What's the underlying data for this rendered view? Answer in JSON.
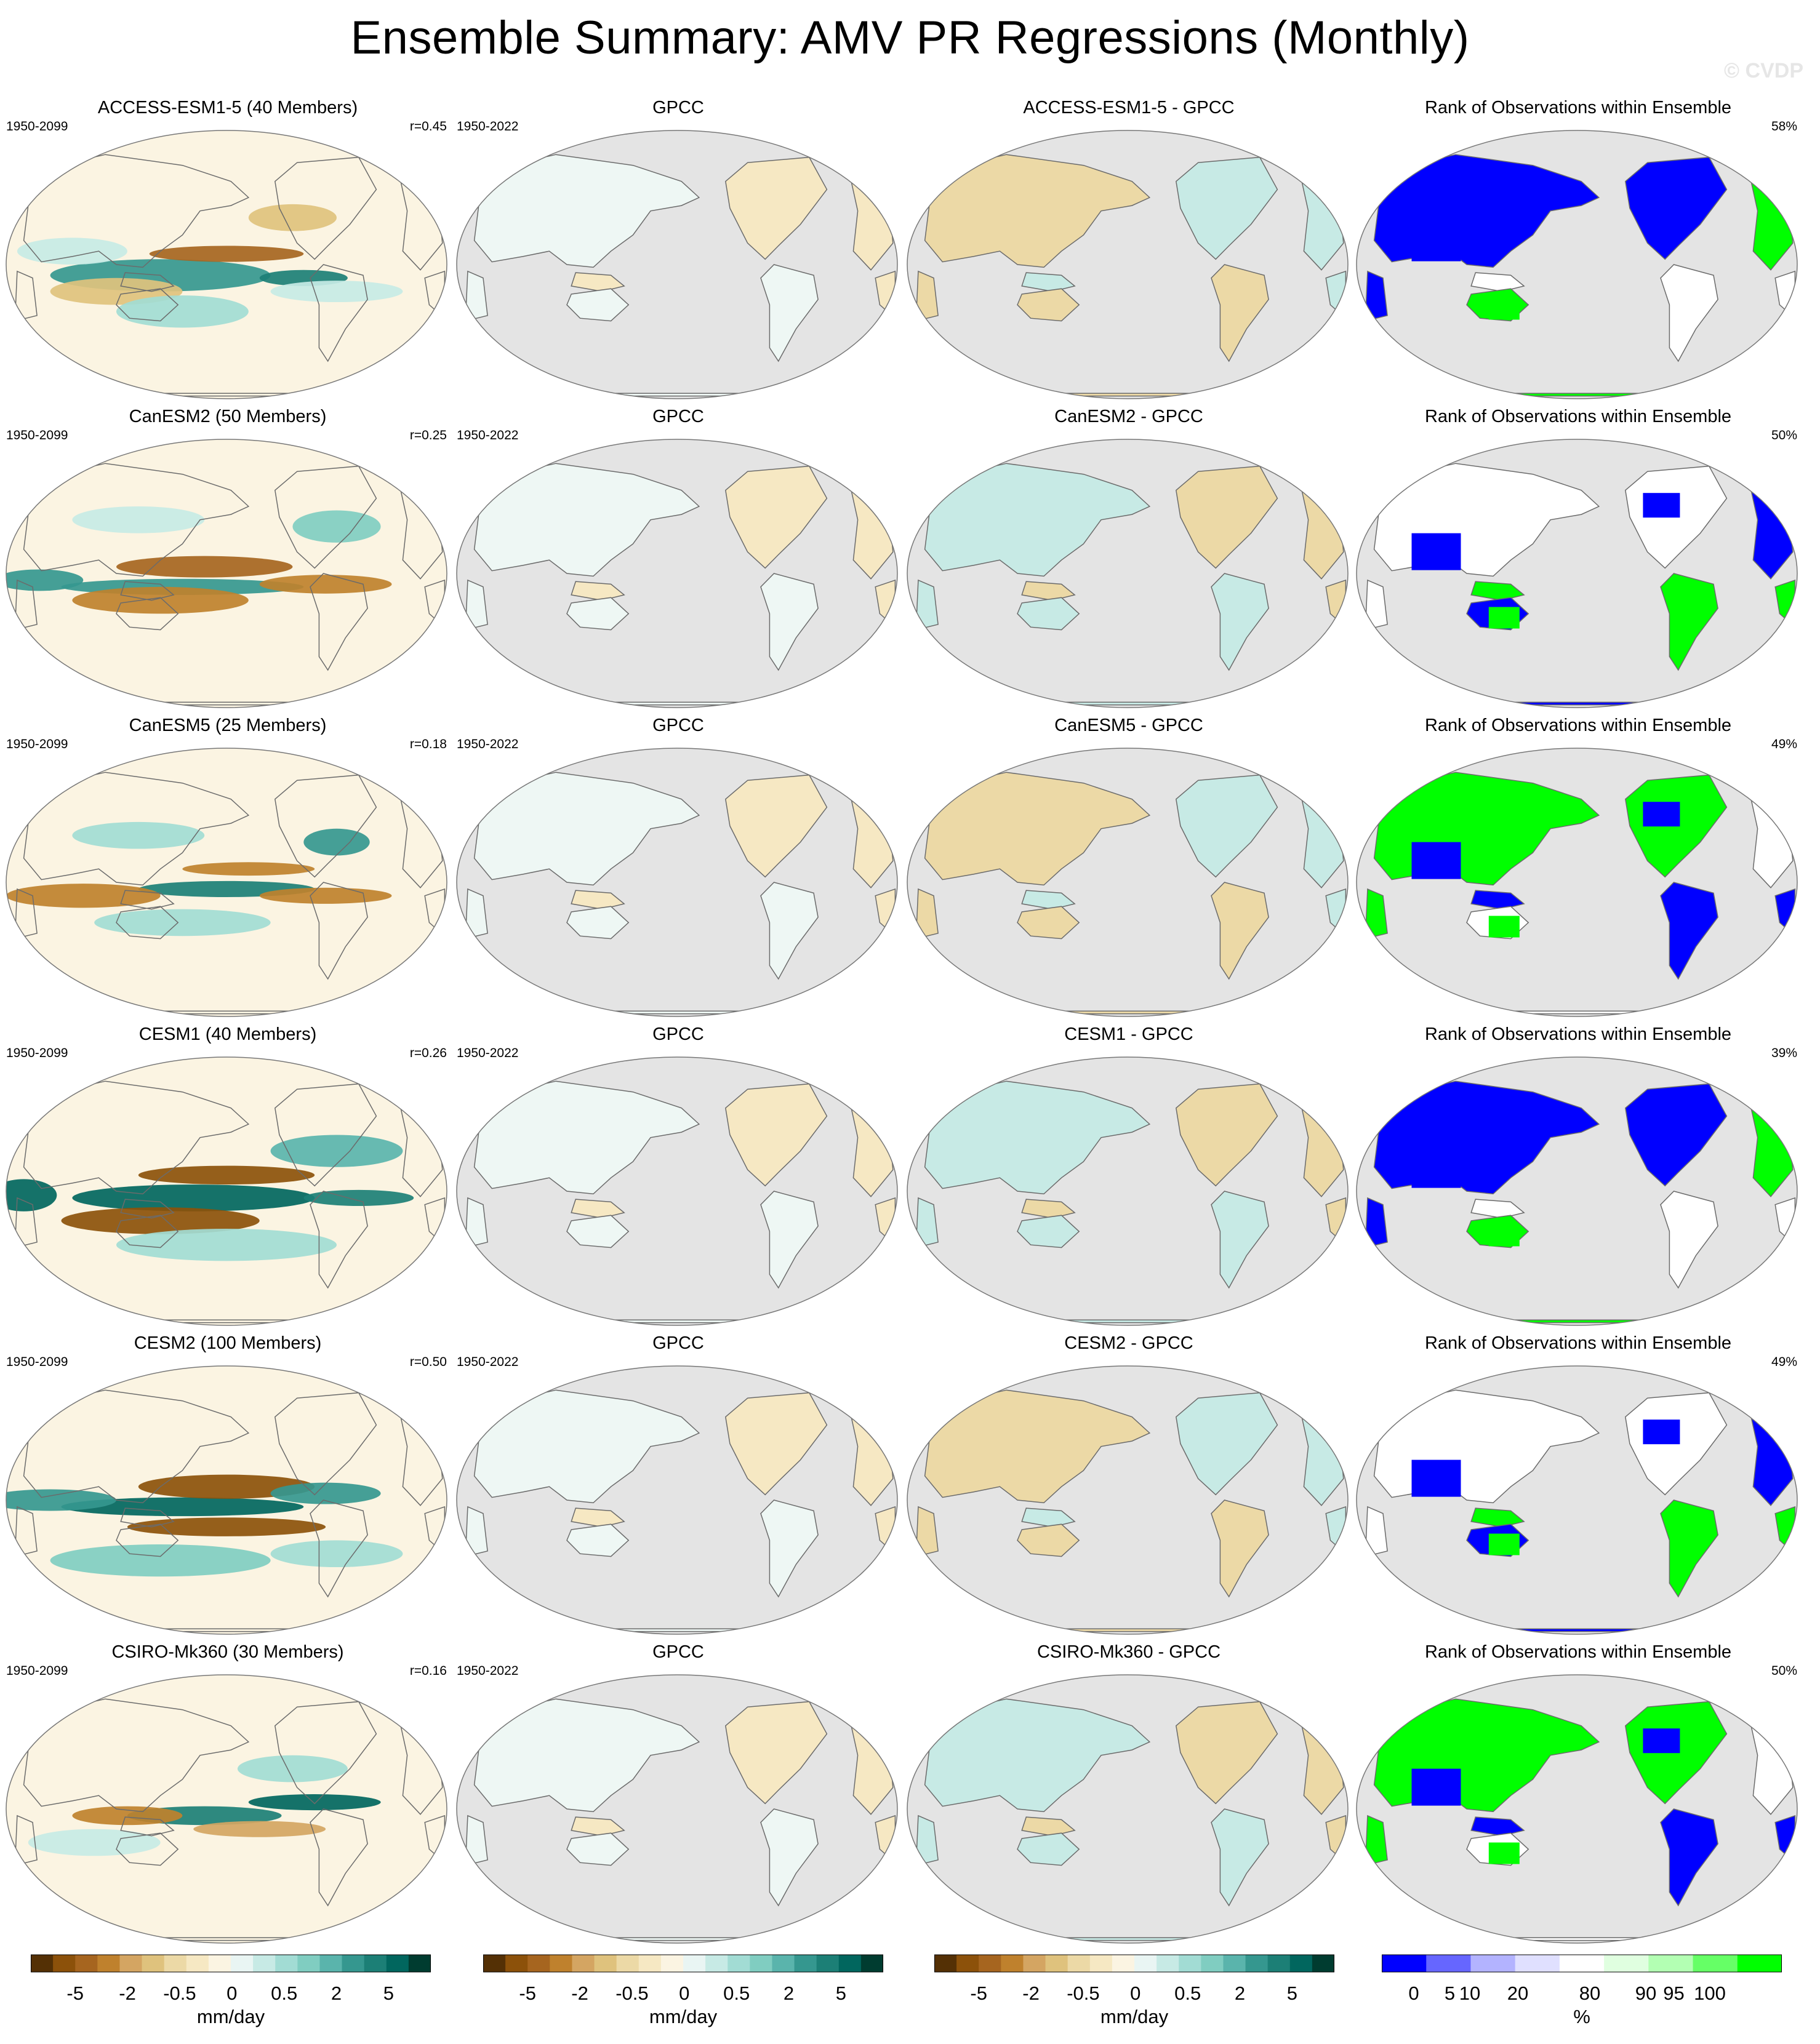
{
  "title": "Ensemble Summary: AMV PR Regressions (Monthly)",
  "watermark": "© CVDP",
  "colors": {
    "ocean_land_mask": "#e4e4e4",
    "coast": "#6b6b6b",
    "brown_dark": "#543005",
    "brown_mid": "#bf812d",
    "brown_light": "#f6e8c3",
    "teal_light": "#c7eae5",
    "teal_mid": "#35978f",
    "teal_dark": "#003c30",
    "rank_blue": "#0000ff",
    "rank_green": "#00ff00"
  },
  "rows": [
    {
      "model": {
        "title": "ACCESS-ESM1-5 (40 Members)",
        "period": "1950-2099",
        "stat": "r=0.45"
      },
      "obs": {
        "title": "GPCC",
        "period": "1950-2022"
      },
      "diff": {
        "title": "ACCESS-ESM1-5 - GPCC"
      },
      "rank": {
        "title": "Rank of Observations within Ensemble",
        "stat": "58%"
      }
    },
    {
      "model": {
        "title": "CanESM2 (50 Members)",
        "period": "1950-2099",
        "stat": "r=0.25"
      },
      "obs": {
        "title": "GPCC",
        "period": "1950-2022"
      },
      "diff": {
        "title": "CanESM2 - GPCC"
      },
      "rank": {
        "title": "Rank of Observations within Ensemble",
        "stat": "50%"
      }
    },
    {
      "model": {
        "title": "CanESM5 (25 Members)",
        "period": "1950-2099",
        "stat": "r=0.18"
      },
      "obs": {
        "title": "GPCC",
        "period": "1950-2022"
      },
      "diff": {
        "title": "CanESM5 - GPCC"
      },
      "rank": {
        "title": "Rank of Observations within Ensemble",
        "stat": "49%"
      }
    },
    {
      "model": {
        "title": "CESM1 (40 Members)",
        "period": "1950-2099",
        "stat": "r=0.26"
      },
      "obs": {
        "title": "GPCC",
        "period": "1950-2022"
      },
      "diff": {
        "title": "CESM1 - GPCC"
      },
      "rank": {
        "title": "Rank of Observations within Ensemble",
        "stat": "39%"
      }
    },
    {
      "model": {
        "title": "CESM2 (100 Members)",
        "period": "1950-2099",
        "stat": "r=0.50"
      },
      "obs": {
        "title": "GPCC",
        "period": "1950-2022"
      },
      "diff": {
        "title": "CESM2 - GPCC"
      },
      "rank": {
        "title": "Rank of Observations within Ensemble",
        "stat": "49%"
      }
    },
    {
      "model": {
        "title": "CSIRO-Mk360 (30 Members)",
        "period": "1950-2099",
        "stat": "r=0.16"
      },
      "obs": {
        "title": "GPCC",
        "period": "1950-2022"
      },
      "diff": {
        "title": "CSIRO-Mk360 - GPCC"
      },
      "rank": {
        "title": "Rank of Observations within Ensemble",
        "stat": "50%"
      }
    }
  ],
  "colorbars": [
    {
      "ticks": [
        "-5",
        "-2",
        "-0.5",
        "0",
        "0.5",
        "2",
        "5"
      ],
      "units": "mm/day",
      "colors": [
        "#543005",
        "#8c510a",
        "#a6651f",
        "#bf812d",
        "#d4a562",
        "#dfc27d",
        "#ecd9a6",
        "#f6e8c3",
        "#fbf4e2",
        "#e9f5f3",
        "#c7eae5",
        "#a2dcd4",
        "#80cdc1",
        "#5ab4ac",
        "#35978f",
        "#1c7f76",
        "#01665e",
        "#003c30"
      ]
    },
    {
      "ticks": [
        "-5",
        "-2",
        "-0.5",
        "0",
        "0.5",
        "2",
        "5"
      ],
      "units": "mm/day",
      "colors": [
        "#543005",
        "#8c510a",
        "#a6651f",
        "#bf812d",
        "#d4a562",
        "#dfc27d",
        "#ecd9a6",
        "#f6e8c3",
        "#fbf4e2",
        "#e9f5f3",
        "#c7eae5",
        "#a2dcd4",
        "#80cdc1",
        "#5ab4ac",
        "#35978f",
        "#1c7f76",
        "#01665e",
        "#003c30"
      ]
    },
    {
      "ticks": [
        "-5",
        "-2",
        "-0.5",
        "0",
        "0.5",
        "2",
        "5"
      ],
      "units": "mm/day",
      "colors": [
        "#543005",
        "#8c510a",
        "#a6651f",
        "#bf812d",
        "#d4a562",
        "#dfc27d",
        "#ecd9a6",
        "#f6e8c3",
        "#fbf4e2",
        "#e9f5f3",
        "#c7eae5",
        "#a2dcd4",
        "#80cdc1",
        "#5ab4ac",
        "#35978f",
        "#1c7f76",
        "#01665e",
        "#003c30"
      ]
    },
    {
      "ticks": [
        "0",
        "5",
        "10",
        "20",
        "80",
        "90",
        "95",
        "100"
      ],
      "units": "%",
      "colors": [
        "#0000ff",
        "#6666ff",
        "#b3b3ff",
        "#e0e0ff",
        "#ffffff",
        "#e0ffe0",
        "#b3ffb3",
        "#66ff66",
        "#00ff00"
      ]
    }
  ]
}
